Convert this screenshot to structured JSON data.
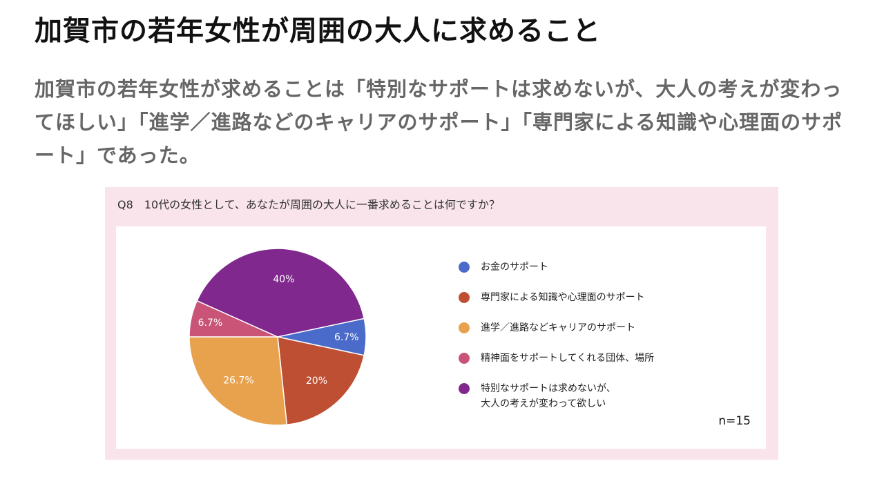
{
  "title": "加賀市の若年女性が周囲の大人に求めること",
  "summary": "加賀市の若年女性が求めることは「特別なサポートは求めないが、大人の考えが変わってほしい」「進学／進路などのキャリアのサポート」「専門家による知識や心理面のサポート」であった。",
  "chart_data": {
    "type": "pie",
    "title": "Q8　10代の女性として、あなたが周囲の大人に一番求めることは何ですか？",
    "note": "n=15",
    "legend_position": "right",
    "slices": [
      {
        "label": "お金のサポート",
        "value": 6.7,
        "value_label": "6.7%",
        "color": "#4a6bc9"
      },
      {
        "label": "専門家による知識や心理面のサポート",
        "value": 20,
        "value_label": "20%",
        "color": "#bf4f33"
      },
      {
        "label": "進学／進路などキャリアのサポート",
        "value": 26.7,
        "value_label": "26.7%",
        "color": "#e8a24e"
      },
      {
        "label": "精神面をサポートしてくれる団体、場所",
        "value": 6.7,
        "value_label": "6.7%",
        "color": "#c95478"
      },
      {
        "label": "特別なサポートは求めないが、\n大人の考えが変わって欲しい",
        "value": 40,
        "value_label": "40%",
        "color": "#80288d"
      }
    ]
  }
}
